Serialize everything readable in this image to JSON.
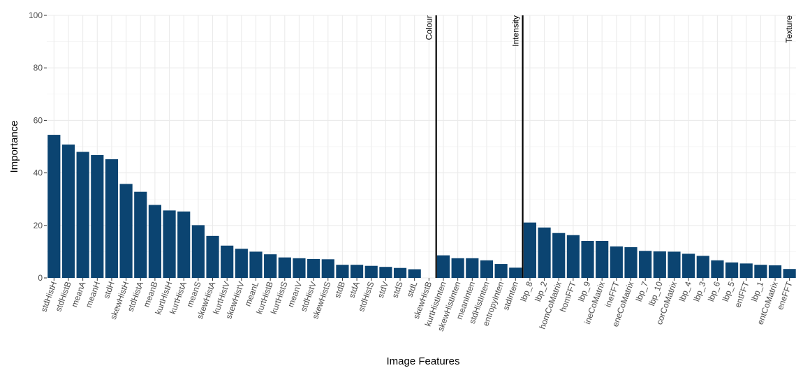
{
  "chart_data": {
    "type": "bar",
    "ylabel": "Importance",
    "xlabel": "Image Features",
    "ylim": [
      0,
      100
    ],
    "yticks": [
      0,
      20,
      40,
      60,
      80,
      100
    ],
    "grid": true,
    "bar_color": "#0b4471",
    "background": "#ffffff",
    "grid_color": "#ebebeb",
    "separators": [
      {
        "label": "Colour",
        "after_category": "skewHistB"
      },
      {
        "label": "Intensity",
        "after_category": "stdInten"
      },
      {
        "label": "Texture",
        "after_category": "eneFFT"
      }
    ],
    "categories": [
      "stdHistH",
      "stdHistB",
      "meanA",
      "meanH",
      "stdH",
      "skewHistH",
      "stdHistA",
      "meanB",
      "kurtHistH",
      "kurtHistA",
      "meanS",
      "skewHistA",
      "kurtHistV",
      "skewHistV",
      "meanL",
      "kurtHistB",
      "kurtHistS",
      "meanV",
      "stdHistV",
      "skewHistS",
      "stdB",
      "stdA",
      "stdHistS",
      "stdV",
      "stdS",
      "stdL",
      "skewHistB",
      "kurtHistInten",
      "skewHistInten",
      "meanInten",
      "stdHistInten",
      "entropyInten",
      "stdInten",
      "lbp_8",
      "lbp_2",
      "homCoMatrix",
      "homFFT",
      "lbp_9",
      "ineCoMatrix",
      "ineFFT",
      "eneCoMatrix",
      "lbp_7",
      "lbp_10",
      "corCoMatrix",
      "lbp_4",
      "lbp_3",
      "lbp_6",
      "lbp_5",
      "entFFT",
      "lbp_1",
      "entCoMatrix",
      "eneFFT"
    ],
    "values": [
      54.5,
      50.8,
      48.0,
      46.8,
      45.2,
      35.8,
      32.8,
      27.8,
      25.7,
      25.3,
      20.1,
      16.0,
      12.3,
      11.1,
      10.0,
      9.0,
      7.8,
      7.5,
      7.2,
      7.1,
      5.0,
      5.0,
      4.6,
      4.2,
      3.8,
      3.3,
      0.0,
      8.6,
      7.5,
      7.5,
      6.7,
      5.3,
      3.9,
      21.1,
      19.2,
      17.1,
      16.3,
      14.1,
      14.1,
      12.0,
      11.7,
      10.3,
      10.1,
      10.0,
      9.2,
      8.4,
      6.7,
      5.9,
      5.5,
      5.0,
      4.8,
      3.4
    ]
  }
}
